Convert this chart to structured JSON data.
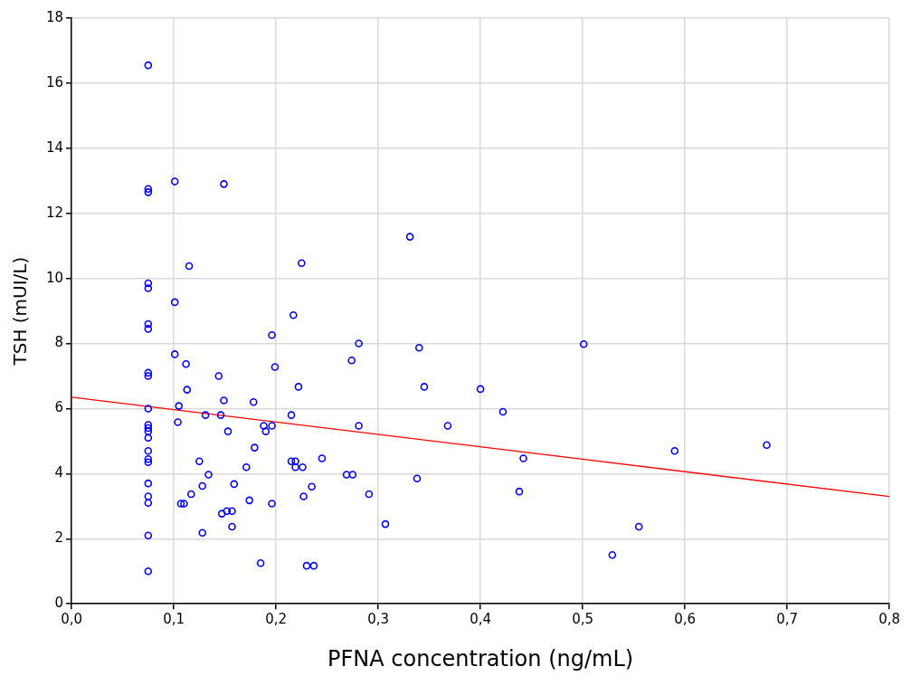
{
  "chart_data": {
    "type": "scatter",
    "xlabel": "PFNA concentration (ng/mL)",
    "ylabel": "TSH (mUI/L)",
    "grid": true,
    "legend": false,
    "xlim": [
      0,
      0.8
    ],
    "xticks": [
      {
        "value": 0,
        "label": "0,0"
      },
      {
        "value": 0.1,
        "label": "0,1"
      },
      {
        "value": 0.2,
        "label": "0,2"
      },
      {
        "value": 0.3,
        "label": "0,3"
      },
      {
        "value": 0.4,
        "label": "0,4"
      },
      {
        "value": 0.5,
        "label": "0,5"
      },
      {
        "value": 0.6,
        "label": "0,6"
      },
      {
        "value": 0.7,
        "label": "0,7"
      },
      {
        "value": 0.8,
        "label": "0,8"
      }
    ],
    "ylim": [
      0,
      18
    ],
    "yticks": [
      0,
      2,
      4,
      6,
      8,
      10,
      12,
      14,
      16,
      18
    ],
    "series": [
      {
        "type": "scatter",
        "marker": "circle",
        "color": "#0000ff",
        "x": [
          0.075,
          0.075,
          0.075,
          0.075,
          0.075,
          0.075,
          0.075,
          0.075,
          0.075,
          0.075,
          0.075,
          0.075,
          0.075,
          0.075,
          0.075,
          0.075,
          0.075,
          0.075,
          0.075,
          0.075,
          0.075,
          0.075,
          0.101,
          0.149,
          0.115,
          0.225,
          0.101,
          0.217,
          0.196,
          0.101,
          0.112,
          0.144,
          0.199,
          0.113,
          0.222,
          0.149,
          0.105,
          0.178,
          0.104,
          0.131,
          0.146,
          0.215,
          0.153,
          0.188,
          0.19,
          0.196,
          0.125,
          0.179,
          0.215,
          0.219,
          0.219,
          0.226,
          0.171,
          0.245,
          0.134,
          0.269,
          0.275,
          0.117,
          0.128,
          0.159,
          0.107,
          0.11,
          0.174,
          0.196,
          0.227,
          0.235,
          0.291,
          0.147,
          0.152,
          0.157,
          0.157,
          0.128,
          0.185,
          0.23,
          0.237,
          0.307,
          0.331,
          0.281,
          0.274,
          0.34,
          0.345,
          0.281,
          0.368,
          0.338,
          0.4,
          0.422,
          0.442,
          0.438,
          0.501,
          0.529,
          0.555,
          0.59,
          0.68
        ],
        "values": [
          16.55,
          12.75,
          12.65,
          9.85,
          9.7,
          8.6,
          8.45,
          7.1,
          7.0,
          6.0,
          5.5,
          5.4,
          5.3,
          5.1,
          4.7,
          4.45,
          4.35,
          3.7,
          3.3,
          3.1,
          2.1,
          1.0,
          12.98,
          12.9,
          10.38,
          10.47,
          9.27,
          8.87,
          8.26,
          7.67,
          7.37,
          7.0,
          7.28,
          6.58,
          6.67,
          6.25,
          6.08,
          6.2,
          5.58,
          5.8,
          5.8,
          5.8,
          5.3,
          5.47,
          5.3,
          5.47,
          4.38,
          4.8,
          4.38,
          4.38,
          4.2,
          4.2,
          4.2,
          4.47,
          3.97,
          3.97,
          3.97,
          3.37,
          3.62,
          3.68,
          3.08,
          3.08,
          3.18,
          3.08,
          3.3,
          3.6,
          3.37,
          2.77,
          2.85,
          2.85,
          2.37,
          2.18,
          1.25,
          1.17,
          1.17,
          2.45,
          11.28,
          8.0,
          7.48,
          7.87,
          6.67,
          5.47,
          5.47,
          3.85,
          6.6,
          5.9,
          4.47,
          3.45,
          7.98,
          1.5,
          2.37,
          4.7,
          4.88
        ]
      },
      {
        "type": "line",
        "marker": "none",
        "color": "#ff0000",
        "x": [
          0,
          0.8
        ],
        "values": [
          6.35,
          3.3
        ]
      }
    ]
  }
}
